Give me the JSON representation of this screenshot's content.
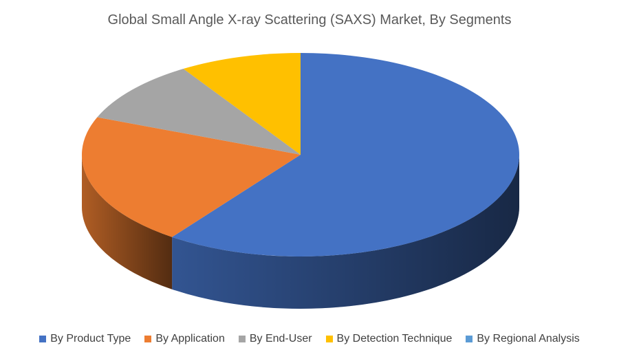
{
  "chart_data": {
    "type": "pie",
    "style": "3d",
    "title": "Global Small Angle X-ray Scattering (SAXS) Market, By Segments",
    "categories": [
      "By Product Type",
      "By Application",
      "By End-User",
      "By Detection Technique",
      "By Regional Analysis"
    ],
    "values": [
      60,
      21,
      10,
      9,
      0
    ],
    "colors": [
      "#4472C4",
      "#ED7D31",
      "#A5A5A5",
      "#FFC000",
      "#5B9BD5"
    ],
    "legend_position": "bottom"
  }
}
